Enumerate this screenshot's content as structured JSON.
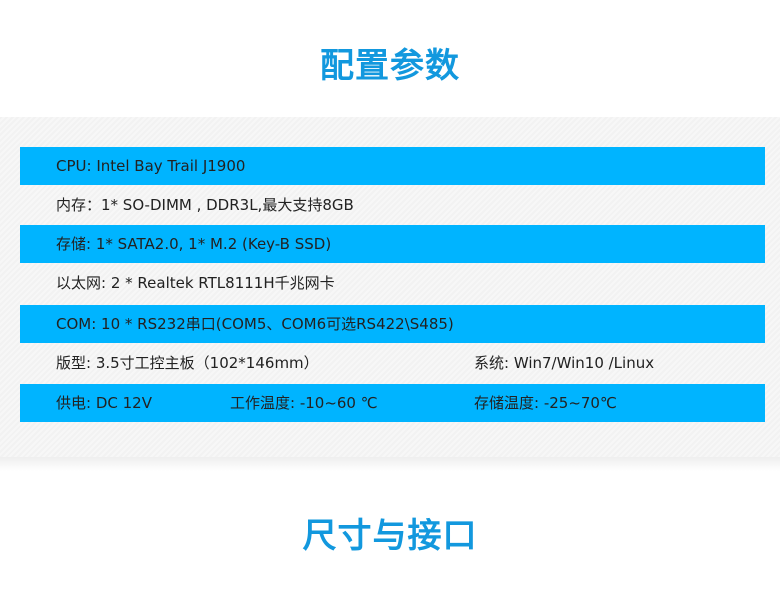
{
  "titles": {
    "config": "配置参数",
    "size": "尺寸与接口"
  },
  "accent": "#00b4ff",
  "rows": [
    {
      "c1": "CPU:  Intel Bay Trail J1900"
    },
    {
      "c1": "内存：1* SO-DIMM , DDR3L,最大支持8GB"
    },
    {
      "c1": "存储: 1* SATA2.0,  1* M.2 (Key-B SSD)"
    },
    {
      "c1": "以太网:  2 * Realtek RTL8111H千兆网卡"
    },
    {
      "c1": "COM:  10 * RS232串口(COM5、COM6可选RS422\\S485)"
    },
    {
      "c1": "版型: 3.5寸工控主板（102*146mm）",
      "c3": "系统: Win7/Win10 /Linux"
    },
    {
      "c1": "供电: DC 12V",
      "c2": "工作温度: -10~60 ℃",
      "c3": "存储温度: -25~70℃"
    }
  ]
}
